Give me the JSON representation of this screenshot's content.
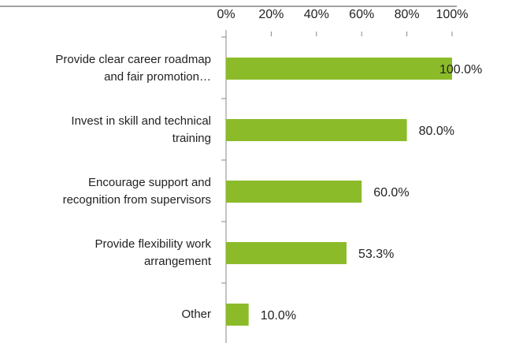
{
  "chart_data": {
    "type": "hbar",
    "categories": [
      "Provide clear career roadmap\nand fair promotion…",
      "Invest in skill and technical\ntraining",
      "Encourage support and\nrecognition from supervisors",
      "Provide flexibility work\narrangement",
      "Other"
    ],
    "values": [
      100,
      80,
      60,
      53.3,
      10
    ],
    "value_labels": [
      "100.0%",
      "80.0%",
      "60.0%",
      "53.3%",
      "10.0%"
    ],
    "color": "#8cbb2a",
    "xlim": [
      0,
      100
    ],
    "xticks": [
      {
        "value": 0,
        "label": "0%"
      },
      {
        "value": 20,
        "label": "20%"
      },
      {
        "value": 40,
        "label": "40%"
      },
      {
        "value": 60,
        "label": "60%"
      },
      {
        "value": 80,
        "label": "80%"
      },
      {
        "value": 100,
        "label": "100%"
      }
    ]
  }
}
